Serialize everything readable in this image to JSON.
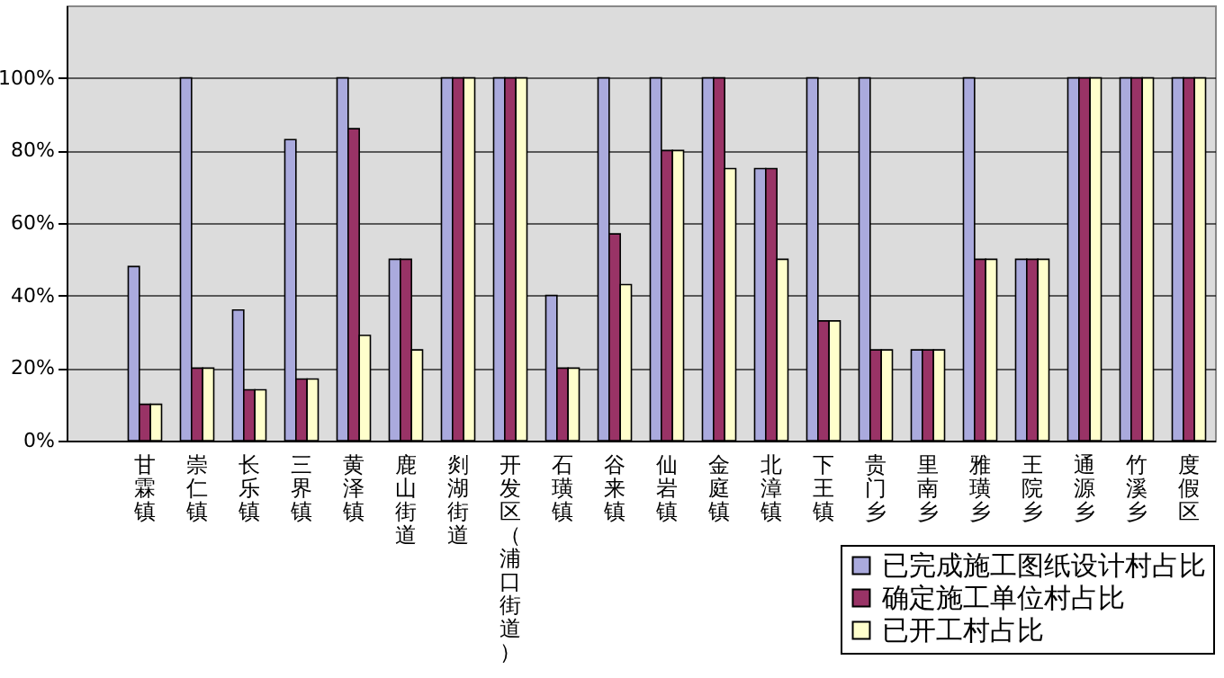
{
  "chart_data": {
    "type": "bar",
    "categories": [
      null,
      "甘霖镇",
      "崇仁镇",
      "长乐镇",
      "三界镇",
      "黄泽镇",
      "鹿山街道",
      "剡湖街道",
      "开发区（浦口街道）",
      "石璜镇",
      "谷来镇",
      "仙岩镇",
      "金庭镇",
      "北漳镇",
      "下王镇",
      "贵门乡",
      "里南乡",
      "雅璜乡",
      "王院乡",
      "通源乡",
      "竹溪乡",
      "度假区"
    ],
    "series": [
      {
        "name": "已完成施工图纸设计村占比",
        "color": "#aaaadd",
        "values": [
          null,
          48,
          100,
          36,
          83,
          100,
          50,
          100,
          100,
          40,
          100,
          100,
          100,
          75,
          100,
          100,
          25,
          100,
          50,
          100,
          100,
          100
        ]
      },
      {
        "name": "确定施工单位村占比",
        "color": "#993366",
        "values": [
          null,
          10,
          20,
          14,
          17,
          86,
          50,
          100,
          100,
          20,
          57,
          80,
          100,
          75,
          33,
          25,
          25,
          50,
          50,
          100,
          100,
          100
        ]
      },
      {
        "name": "已开工村占比",
        "color": "#ffffcc",
        "values": [
          null,
          10,
          20,
          14,
          17,
          29,
          25,
          100,
          100,
          20,
          43,
          80,
          75,
          50,
          33,
          25,
          25,
          50,
          50,
          100,
          100,
          100
        ]
      }
    ],
    "ylim": [
      0,
      120
    ],
    "yticks": [
      {
        "value": 0,
        "label": "0%"
      },
      {
        "value": 20,
        "label": "20%"
      },
      {
        "value": 40,
        "label": "40%"
      },
      {
        "value": 60,
        "label": "60%"
      },
      {
        "value": 80,
        "label": "80%"
      },
      {
        "value": 100,
        "label": "100%"
      }
    ],
    "grid": "y",
    "legend": "bottom right"
  }
}
